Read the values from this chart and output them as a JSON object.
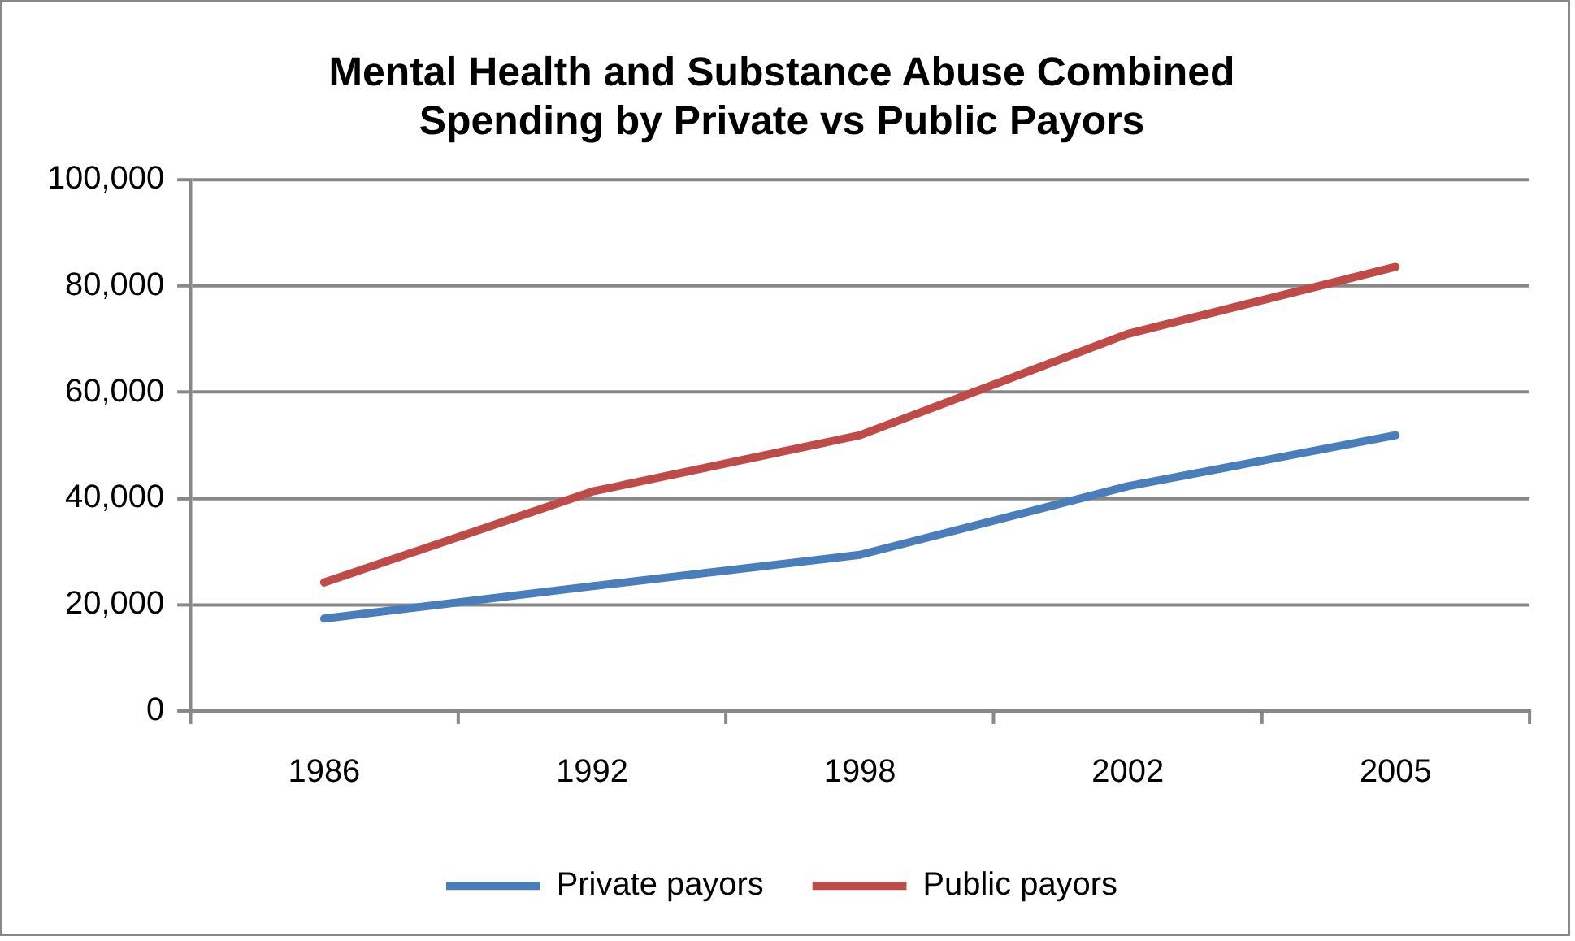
{
  "chart_data": {
    "type": "line",
    "title": "Mental Health and Substance Abuse Combined Spending by Private vs Public Payors",
    "categories": [
      "1986",
      "1992",
      "1998",
      "2002",
      "2005"
    ],
    "series": [
      {
        "name": "Private payors",
        "color": "#4a7ebb",
        "values": [
          17400,
          23500,
          29400,
          42300,
          51900
        ]
      },
      {
        "name": "Public payors",
        "color": "#be4b48",
        "values": [
          24200,
          41300,
          51900,
          71000,
          83600
        ]
      }
    ],
    "ylim": [
      0,
      100000
    ],
    "yticks": [
      0,
      {
        "value": 20000,
        "label": "20,000"
      },
      {
        "value": 40000,
        "label": "40,000"
      },
      {
        "value": 60000,
        "label": "60,000"
      },
      {
        "value": 80000,
        "label": "80,000"
      },
      {
        "value": 100000,
        "label": "100,000"
      }
    ],
    "grid": "y",
    "legend": "bottom",
    "marker": "none",
    "line_style": "solid"
  }
}
